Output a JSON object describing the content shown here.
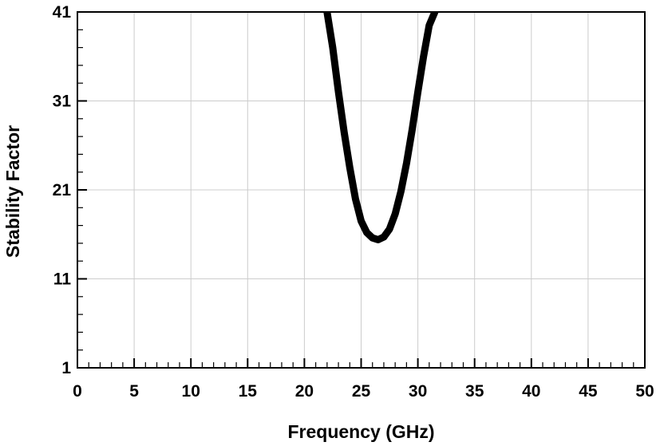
{
  "chart_data": {
    "type": "line",
    "title": "",
    "xlabel": "Frequency (GHz)",
    "ylabel": "Stability Factor",
    "xlim": [
      0,
      50
    ],
    "ylim": [
      1,
      41
    ],
    "x_ticks": [
      0,
      5,
      10,
      15,
      20,
      25,
      30,
      35,
      40,
      45,
      50
    ],
    "y_ticks": [
      1,
      11,
      21,
      31,
      41
    ],
    "x_tick_labels": [
      "0",
      "5",
      "10",
      "15",
      "20",
      "25",
      "30",
      "35",
      "40",
      "45",
      "50"
    ],
    "y_tick_labels": [
      "1",
      "11",
      "21",
      "31",
      "41"
    ],
    "grid": true,
    "legend": "none",
    "colors": {
      "line": "#000000",
      "grid": "#cccccc",
      "frame": "#000000"
    },
    "series": [
      {
        "x": [
          22.0,
          22.5,
          23.0,
          23.5,
          24.0,
          24.5,
          25.0,
          25.5,
          26.0,
          26.5,
          27.0,
          27.5,
          28.0,
          28.5,
          29.0,
          29.5,
          30.0,
          30.5,
          31.0,
          31.5
        ],
        "y": [
          41.0,
          37.0,
          32.0,
          27.5,
          23.5,
          20.0,
          17.5,
          16.2,
          15.6,
          15.4,
          15.7,
          16.6,
          18.3,
          20.8,
          24.0,
          27.8,
          32.0,
          36.0,
          39.5,
          41.0
        ]
      }
    ]
  }
}
